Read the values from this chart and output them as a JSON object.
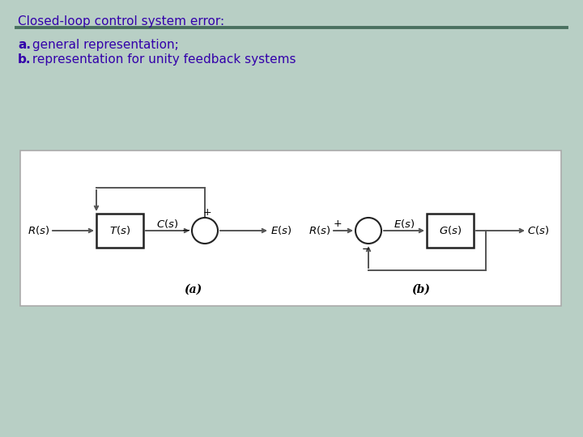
{
  "title": "Closed-loop control system error:",
  "subtitle_a_bold": "a.",
  "subtitle_a_rest": " general representation;",
  "subtitle_b_bold": "b.",
  "subtitle_b_rest": " representation for unity feedback systems",
  "title_color": "#3300AA",
  "text_color": "#3300AA",
  "diagram_line_color": "#555555",
  "bg_color_top": "#c8ddd5",
  "bg_color": "#b8cfc5",
  "diagram_bg": "#ffffff",
  "separator_color": "#4a7060",
  "diagram_label_a": "(a)",
  "diagram_label_b": "(b)",
  "title_fontsize": 11,
  "subtitle_fontsize": 11,
  "diagram_fontsize": 9.5,
  "label_fontsize": 10
}
